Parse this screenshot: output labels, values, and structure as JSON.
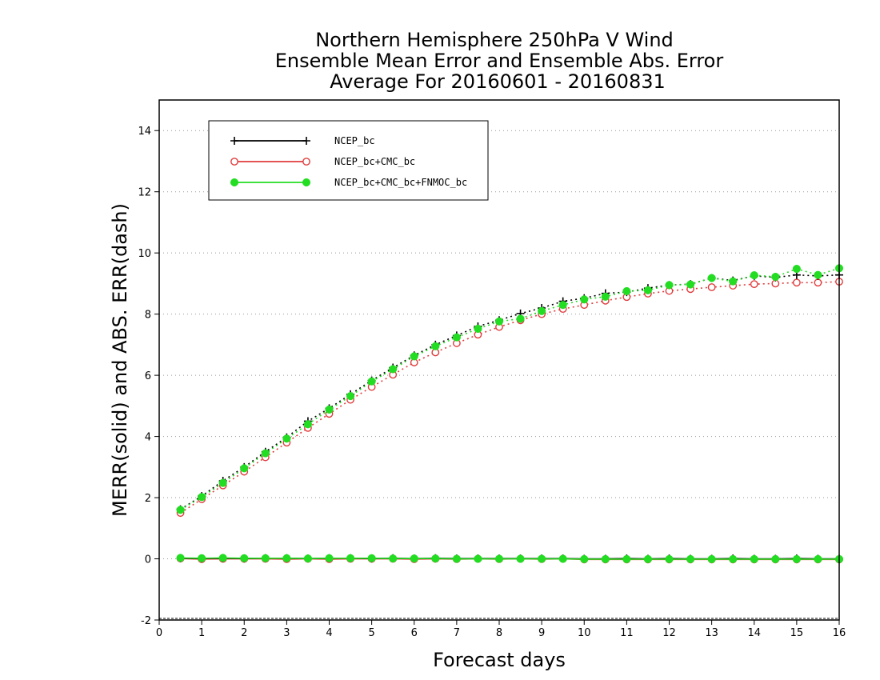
{
  "chart_data": {
    "type": "line",
    "title": [
      "Northern Hemisphere 250hPa V Wind",
      "Ensemble Mean Error and Ensemble Abs. Error",
      "Average For 20160601 - 20160831"
    ],
    "xlabel": "Forecast days",
    "ylabel": "MERR(solid) and ABS. ERR(dash)",
    "xlim": [
      0,
      16
    ],
    "ylim": [
      -2,
      15
    ],
    "xticks": [
      0,
      1,
      2,
      3,
      4,
      5,
      6,
      7,
      8,
      9,
      10,
      11,
      12,
      13,
      14,
      15,
      16
    ],
    "yticks": [
      -2,
      0,
      2,
      4,
      6,
      8,
      10,
      12,
      14
    ],
    "grid": "horizontal dotted at y ticks",
    "legend_position": "top-left",
    "x": [
      0.5,
      1,
      1.5,
      2,
      2.5,
      3,
      3.5,
      4,
      4.5,
      5,
      5.5,
      6,
      6.5,
      7,
      7.5,
      8,
      8.5,
      9,
      9.5,
      10,
      10.5,
      11,
      11.5,
      12,
      12.5,
      13,
      13.5,
      14,
      14.5,
      15,
      15.5,
      16
    ],
    "series": [
      {
        "name": "NCEP_bc",
        "color": "#000000",
        "marker": "plus",
        "merr": [
          0.02,
          0.01,
          0.02,
          0.01,
          0.02,
          0.02,
          0.01,
          0.02,
          0.02,
          0.01,
          0.02,
          0.01,
          0.02,
          0.01,
          0.01,
          0.01,
          0.01,
          0.01,
          0.01,
          0.0,
          0.0,
          0.01,
          0.0,
          0.01,
          0.0,
          0.0,
          0.01,
          0.0,
          0.0,
          0.01,
          0.0,
          0.0
        ],
        "abs_err": [
          1.62,
          2.05,
          2.55,
          3.0,
          3.5,
          3.97,
          4.5,
          4.92,
          5.38,
          5.83,
          6.25,
          6.65,
          7.0,
          7.3,
          7.6,
          7.8,
          8.02,
          8.2,
          8.42,
          8.52,
          8.68,
          8.72,
          8.85,
          8.95,
          8.98,
          9.18,
          9.1,
          9.25,
          9.2,
          9.28,
          9.25,
          9.28
        ]
      },
      {
        "name": "NCEP_bc+CMC_bc",
        "color": "#e03c3c",
        "marker": "open-circle",
        "merr": [
          0.01,
          -0.01,
          0.0,
          0.0,
          0.0,
          -0.01,
          0.0,
          -0.01,
          0.0,
          0.0,
          0.0,
          -0.01,
          0.0,
          -0.01,
          0.0,
          -0.01,
          0.0,
          -0.01,
          0.0,
          -0.02,
          -0.02,
          -0.02,
          -0.02,
          -0.02,
          -0.02,
          -0.02,
          -0.02,
          -0.02,
          -0.02,
          -0.02,
          -0.02,
          -0.02
        ],
        "abs_err": [
          1.5,
          1.95,
          2.4,
          2.85,
          3.32,
          3.8,
          4.28,
          4.74,
          5.2,
          5.62,
          6.02,
          6.42,
          6.75,
          7.05,
          7.33,
          7.58,
          7.8,
          8.0,
          8.17,
          8.3,
          8.44,
          8.56,
          8.67,
          8.76,
          8.82,
          8.88,
          8.93,
          8.98,
          9.0,
          9.03,
          9.03,
          9.06
        ]
      },
      {
        "name": "NCEP_bc+CMC_bc+FNMOC_bc",
        "color": "#22dd22",
        "marker": "filled-circle",
        "merr": [
          0.03,
          0.02,
          0.03,
          0.02,
          0.02,
          0.02,
          0.01,
          0.02,
          0.02,
          0.02,
          0.01,
          0.01,
          0.01,
          0.0,
          0.0,
          0.0,
          0.0,
          0.0,
          0.0,
          -0.01,
          -0.01,
          -0.01,
          -0.01,
          -0.01,
          -0.01,
          -0.01,
          -0.01,
          -0.01,
          -0.01,
          -0.01,
          -0.01,
          -0.01
        ],
        "abs_err": [
          1.6,
          2.02,
          2.48,
          2.96,
          3.45,
          3.93,
          4.4,
          4.88,
          5.32,
          5.8,
          6.2,
          6.62,
          6.95,
          7.24,
          7.52,
          7.76,
          7.85,
          8.1,
          8.3,
          8.48,
          8.57,
          8.75,
          8.78,
          8.95,
          8.97,
          9.18,
          9.07,
          9.27,
          9.22,
          9.48,
          9.28,
          9.5
        ]
      }
    ]
  }
}
